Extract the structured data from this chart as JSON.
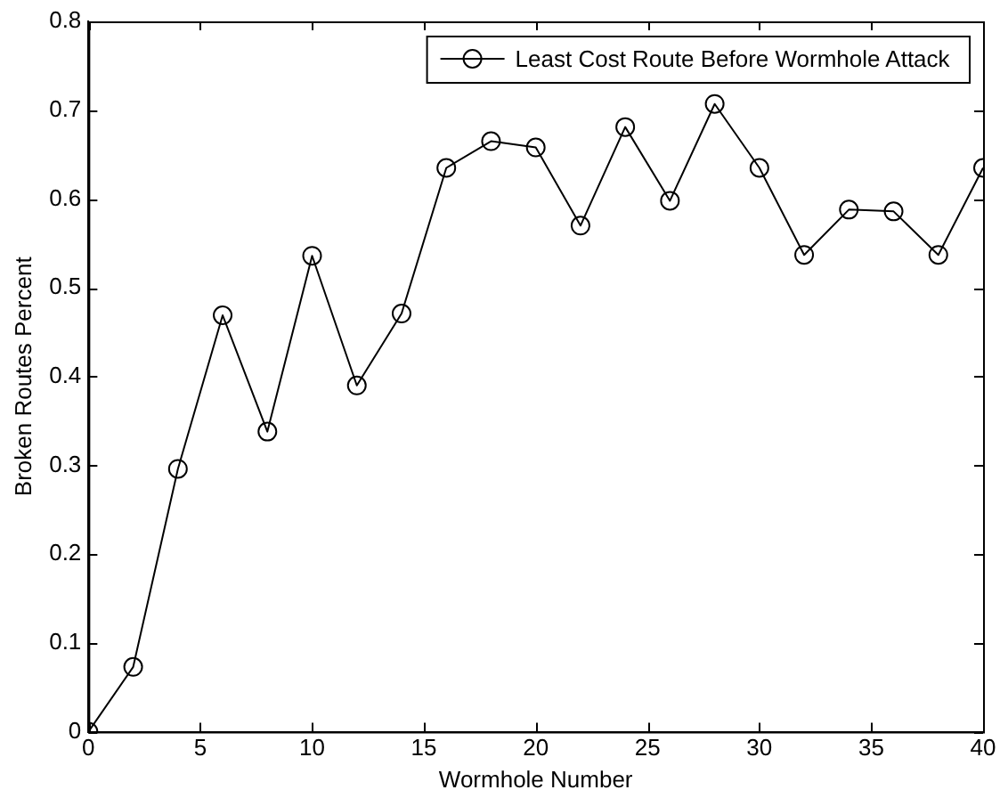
{
  "chart_data": {
    "type": "line",
    "xlabel": "Wormhole Number",
    "ylabel": "Broken Routes Percent",
    "x": [
      0,
      2,
      4,
      6,
      8,
      10,
      12,
      14,
      16,
      18,
      20,
      22,
      24,
      26,
      28,
      30,
      32,
      34,
      36,
      38,
      40
    ],
    "series": [
      {
        "name": "Least Cost Route Before Wormhole Attack",
        "color": "#000000",
        "values": [
          0,
          0.073,
          0.296,
          0.469,
          0.338,
          0.536,
          0.39,
          0.471,
          0.635,
          0.665,
          0.658,
          0.57,
          0.681,
          0.598,
          0.707,
          0.635,
          0.537,
          0.588,
          0.586,
          0.537,
          0.635
        ]
      }
    ],
    "xlim": [
      0,
      40
    ],
    "xticks": [
      0,
      5,
      10,
      15,
      20,
      25,
      30,
      35,
      40
    ],
    "ylim": [
      0,
      0.8
    ],
    "yticks": [
      0,
      0.1,
      0.2,
      0.3,
      0.4,
      0.5,
      0.6,
      0.7,
      0.8
    ],
    "grid": false,
    "legend": "top right",
    "marker": "circle",
    "line_style": "solid"
  }
}
